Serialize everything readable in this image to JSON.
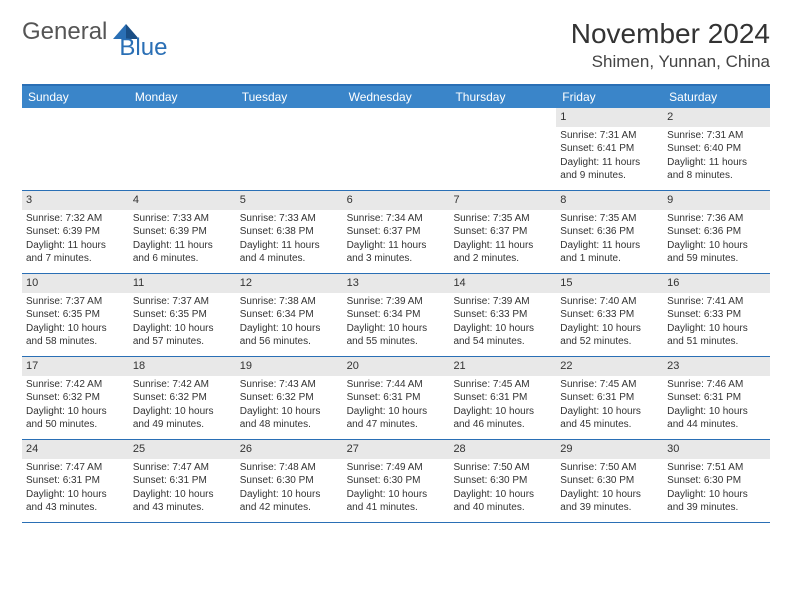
{
  "logo": {
    "text1": "General",
    "text2": "Blue"
  },
  "title": "November 2024",
  "location": "Shimen, Yunnan, China",
  "colors": {
    "header_bg": "#3a85c9",
    "border": "#2a6fb5",
    "daynum_bg": "#e8e8e8",
    "text": "#333333",
    "logo_gray": "#555555",
    "logo_blue": "#2a6fb5",
    "page_bg": "#ffffff"
  },
  "day_headers": [
    "Sunday",
    "Monday",
    "Tuesday",
    "Wednesday",
    "Thursday",
    "Friday",
    "Saturday"
  ],
  "weeks": [
    [
      {
        "n": "",
        "s": "",
        "t": "",
        "d": ""
      },
      {
        "n": "",
        "s": "",
        "t": "",
        "d": ""
      },
      {
        "n": "",
        "s": "",
        "t": "",
        "d": ""
      },
      {
        "n": "",
        "s": "",
        "t": "",
        "d": ""
      },
      {
        "n": "",
        "s": "",
        "t": "",
        "d": ""
      },
      {
        "n": "1",
        "s": "Sunrise: 7:31 AM",
        "t": "Sunset: 6:41 PM",
        "d": "Daylight: 11 hours and 9 minutes."
      },
      {
        "n": "2",
        "s": "Sunrise: 7:31 AM",
        "t": "Sunset: 6:40 PM",
        "d": "Daylight: 11 hours and 8 minutes."
      }
    ],
    [
      {
        "n": "3",
        "s": "Sunrise: 7:32 AM",
        "t": "Sunset: 6:39 PM",
        "d": "Daylight: 11 hours and 7 minutes."
      },
      {
        "n": "4",
        "s": "Sunrise: 7:33 AM",
        "t": "Sunset: 6:39 PM",
        "d": "Daylight: 11 hours and 6 minutes."
      },
      {
        "n": "5",
        "s": "Sunrise: 7:33 AM",
        "t": "Sunset: 6:38 PM",
        "d": "Daylight: 11 hours and 4 minutes."
      },
      {
        "n": "6",
        "s": "Sunrise: 7:34 AM",
        "t": "Sunset: 6:37 PM",
        "d": "Daylight: 11 hours and 3 minutes."
      },
      {
        "n": "7",
        "s": "Sunrise: 7:35 AM",
        "t": "Sunset: 6:37 PM",
        "d": "Daylight: 11 hours and 2 minutes."
      },
      {
        "n": "8",
        "s": "Sunrise: 7:35 AM",
        "t": "Sunset: 6:36 PM",
        "d": "Daylight: 11 hours and 1 minute."
      },
      {
        "n": "9",
        "s": "Sunrise: 7:36 AM",
        "t": "Sunset: 6:36 PM",
        "d": "Daylight: 10 hours and 59 minutes."
      }
    ],
    [
      {
        "n": "10",
        "s": "Sunrise: 7:37 AM",
        "t": "Sunset: 6:35 PM",
        "d": "Daylight: 10 hours and 58 minutes."
      },
      {
        "n": "11",
        "s": "Sunrise: 7:37 AM",
        "t": "Sunset: 6:35 PM",
        "d": "Daylight: 10 hours and 57 minutes."
      },
      {
        "n": "12",
        "s": "Sunrise: 7:38 AM",
        "t": "Sunset: 6:34 PM",
        "d": "Daylight: 10 hours and 56 minutes."
      },
      {
        "n": "13",
        "s": "Sunrise: 7:39 AM",
        "t": "Sunset: 6:34 PM",
        "d": "Daylight: 10 hours and 55 minutes."
      },
      {
        "n": "14",
        "s": "Sunrise: 7:39 AM",
        "t": "Sunset: 6:33 PM",
        "d": "Daylight: 10 hours and 54 minutes."
      },
      {
        "n": "15",
        "s": "Sunrise: 7:40 AM",
        "t": "Sunset: 6:33 PM",
        "d": "Daylight: 10 hours and 52 minutes."
      },
      {
        "n": "16",
        "s": "Sunrise: 7:41 AM",
        "t": "Sunset: 6:33 PM",
        "d": "Daylight: 10 hours and 51 minutes."
      }
    ],
    [
      {
        "n": "17",
        "s": "Sunrise: 7:42 AM",
        "t": "Sunset: 6:32 PM",
        "d": "Daylight: 10 hours and 50 minutes."
      },
      {
        "n": "18",
        "s": "Sunrise: 7:42 AM",
        "t": "Sunset: 6:32 PM",
        "d": "Daylight: 10 hours and 49 minutes."
      },
      {
        "n": "19",
        "s": "Sunrise: 7:43 AM",
        "t": "Sunset: 6:32 PM",
        "d": "Daylight: 10 hours and 48 minutes."
      },
      {
        "n": "20",
        "s": "Sunrise: 7:44 AM",
        "t": "Sunset: 6:31 PM",
        "d": "Daylight: 10 hours and 47 minutes."
      },
      {
        "n": "21",
        "s": "Sunrise: 7:45 AM",
        "t": "Sunset: 6:31 PM",
        "d": "Daylight: 10 hours and 46 minutes."
      },
      {
        "n": "22",
        "s": "Sunrise: 7:45 AM",
        "t": "Sunset: 6:31 PM",
        "d": "Daylight: 10 hours and 45 minutes."
      },
      {
        "n": "23",
        "s": "Sunrise: 7:46 AM",
        "t": "Sunset: 6:31 PM",
        "d": "Daylight: 10 hours and 44 minutes."
      }
    ],
    [
      {
        "n": "24",
        "s": "Sunrise: 7:47 AM",
        "t": "Sunset: 6:31 PM",
        "d": "Daylight: 10 hours and 43 minutes."
      },
      {
        "n": "25",
        "s": "Sunrise: 7:47 AM",
        "t": "Sunset: 6:31 PM",
        "d": "Daylight: 10 hours and 43 minutes."
      },
      {
        "n": "26",
        "s": "Sunrise: 7:48 AM",
        "t": "Sunset: 6:30 PM",
        "d": "Daylight: 10 hours and 42 minutes."
      },
      {
        "n": "27",
        "s": "Sunrise: 7:49 AM",
        "t": "Sunset: 6:30 PM",
        "d": "Daylight: 10 hours and 41 minutes."
      },
      {
        "n": "28",
        "s": "Sunrise: 7:50 AM",
        "t": "Sunset: 6:30 PM",
        "d": "Daylight: 10 hours and 40 minutes."
      },
      {
        "n": "29",
        "s": "Sunrise: 7:50 AM",
        "t": "Sunset: 6:30 PM",
        "d": "Daylight: 10 hours and 39 minutes."
      },
      {
        "n": "30",
        "s": "Sunrise: 7:51 AM",
        "t": "Sunset: 6:30 PM",
        "d": "Daylight: 10 hours and 39 minutes."
      }
    ]
  ]
}
